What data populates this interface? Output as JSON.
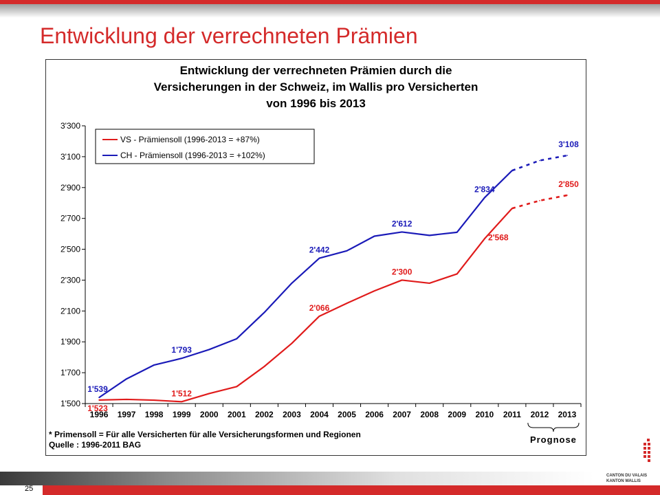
{
  "slide": {
    "title": "Entwicklung der verrechneten Prämien",
    "page_number": "25",
    "logo_line1": "CANTON DU VALAIS",
    "logo_line2": "KANTON WALLIS"
  },
  "colors": {
    "accent_red": "#d42a2a",
    "series_red": "#e01b1b",
    "series_blue": "#1a1ab8"
  },
  "chart_data": {
    "type": "line",
    "title_lines": [
      "Entwicklung der verrechneten Prämien durch die",
      "Versicherungen in der Schweiz, im Wallis pro Versicherten",
      "von 1996 bis 2013"
    ],
    "categories": [
      "1996",
      "1997",
      "1998",
      "1999",
      "2000",
      "2001",
      "2002",
      "2003",
      "2004",
      "2005",
      "2006",
      "2007",
      "2008",
      "2009",
      "2010",
      "2011",
      "2012",
      "2013"
    ],
    "ylim": [
      1500,
      3300
    ],
    "yticks": [
      1500,
      1700,
      1900,
      2100,
      2300,
      2500,
      2700,
      2900,
      3100,
      3300
    ],
    "ytick_labels": [
      "1'500",
      "1'700",
      "1'900",
      "2'100",
      "2'300",
      "2'500",
      "2'700",
      "2'900",
      "3'100",
      "3'300"
    ],
    "grid": false,
    "legend_position": "top-left",
    "forecast_start_index": 15,
    "series": [
      {
        "name": "VS - Prämiensoll (1996-2013 = +87%)",
        "color": "#e01b1b",
        "values": [
          1523,
          1527,
          1522,
          1512,
          1565,
          1610,
          1740,
          1890,
          2066,
          2150,
          2230,
          2300,
          2280,
          2340,
          2568,
          2765,
          2815,
          2850
        ],
        "data_labels": [
          {
            "index": 0,
            "text": "1'523",
            "pos": "below"
          },
          {
            "index": 3,
            "text": "1'512",
            "pos": "above"
          },
          {
            "index": 8,
            "text": "2'066",
            "pos": "above"
          },
          {
            "index": 11,
            "text": "2'300",
            "pos": "above"
          },
          {
            "index": 14,
            "text": "2'568",
            "pos": "right"
          },
          {
            "index": 17,
            "text": "2'850",
            "pos": "above"
          }
        ]
      },
      {
        "name": "CH - Prämiensoll (1996-2013 = +102%)",
        "color": "#1a1ab8",
        "values": [
          1539,
          1660,
          1750,
          1793,
          1850,
          1920,
          2090,
          2280,
          2442,
          2490,
          2585,
          2612,
          2590,
          2610,
          2834,
          3010,
          3075,
          3108
        ],
        "data_labels": [
          {
            "index": 0,
            "text": "1'539",
            "pos": "above"
          },
          {
            "index": 3,
            "text": "1'793",
            "pos": "above"
          },
          {
            "index": 8,
            "text": "2'442",
            "pos": "above"
          },
          {
            "index": 11,
            "text": "2'612",
            "pos": "above"
          },
          {
            "index": 14,
            "text": "2'834",
            "pos": "above"
          },
          {
            "index": 17,
            "text": "3'108",
            "pos": "above"
          }
        ]
      }
    ],
    "forecast_label": "Prognose",
    "footnote_lines": [
      "* Primensoll = Für alle Versicherten für alle Versicherungsformen und Regionen",
      "Quelle : 1996-2011 BAG"
    ]
  }
}
